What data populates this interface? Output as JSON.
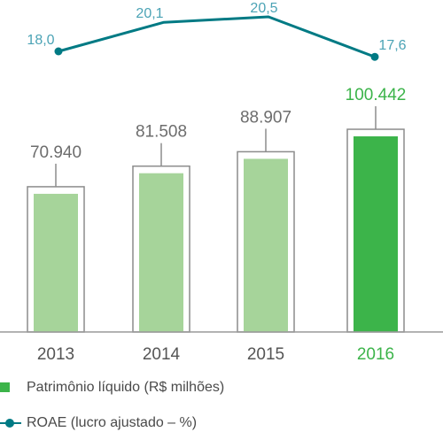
{
  "chart_data": {
    "type": "bar",
    "categories": [
      "2013",
      "2014",
      "2015",
      "2016"
    ],
    "series": [
      {
        "name": "Patrimônio líquido (R$ milhões)",
        "type": "bar",
        "values": [
          70940,
          81508,
          88907,
          100442
        ],
        "labels": [
          "70.940",
          "81.508",
          "88.907",
          "100.442"
        ]
      },
      {
        "name": "ROAE (lucro ajustado – %)",
        "type": "line",
        "values": [
          18.0,
          20.1,
          20.5,
          17.6
        ],
        "labels": [
          "18,0",
          "20,1",
          "20,5",
          "17,6"
        ]
      }
    ],
    "highlight_category": "2016",
    "colors": {
      "bar_light": "#a6d49a",
      "bar_highlight": "#3cb44a",
      "bar_outline": "#8c8c8c",
      "line": "#007a84",
      "line_label": "#4ba3b5",
      "value_label": "#6d6d6d",
      "axis_label": "#555555",
      "highlight_label": "#3cb44a"
    },
    "grid": false,
    "legend_position": "bottom-left"
  },
  "legend": {
    "items": [
      {
        "label": "Patrimônio líquido (R$ milhões)",
        "color": "#3cb44a",
        "kind": "bar"
      },
      {
        "label": "ROAE (lucro ajustado – %)",
        "color": "#007a84",
        "kind": "line"
      }
    ]
  }
}
